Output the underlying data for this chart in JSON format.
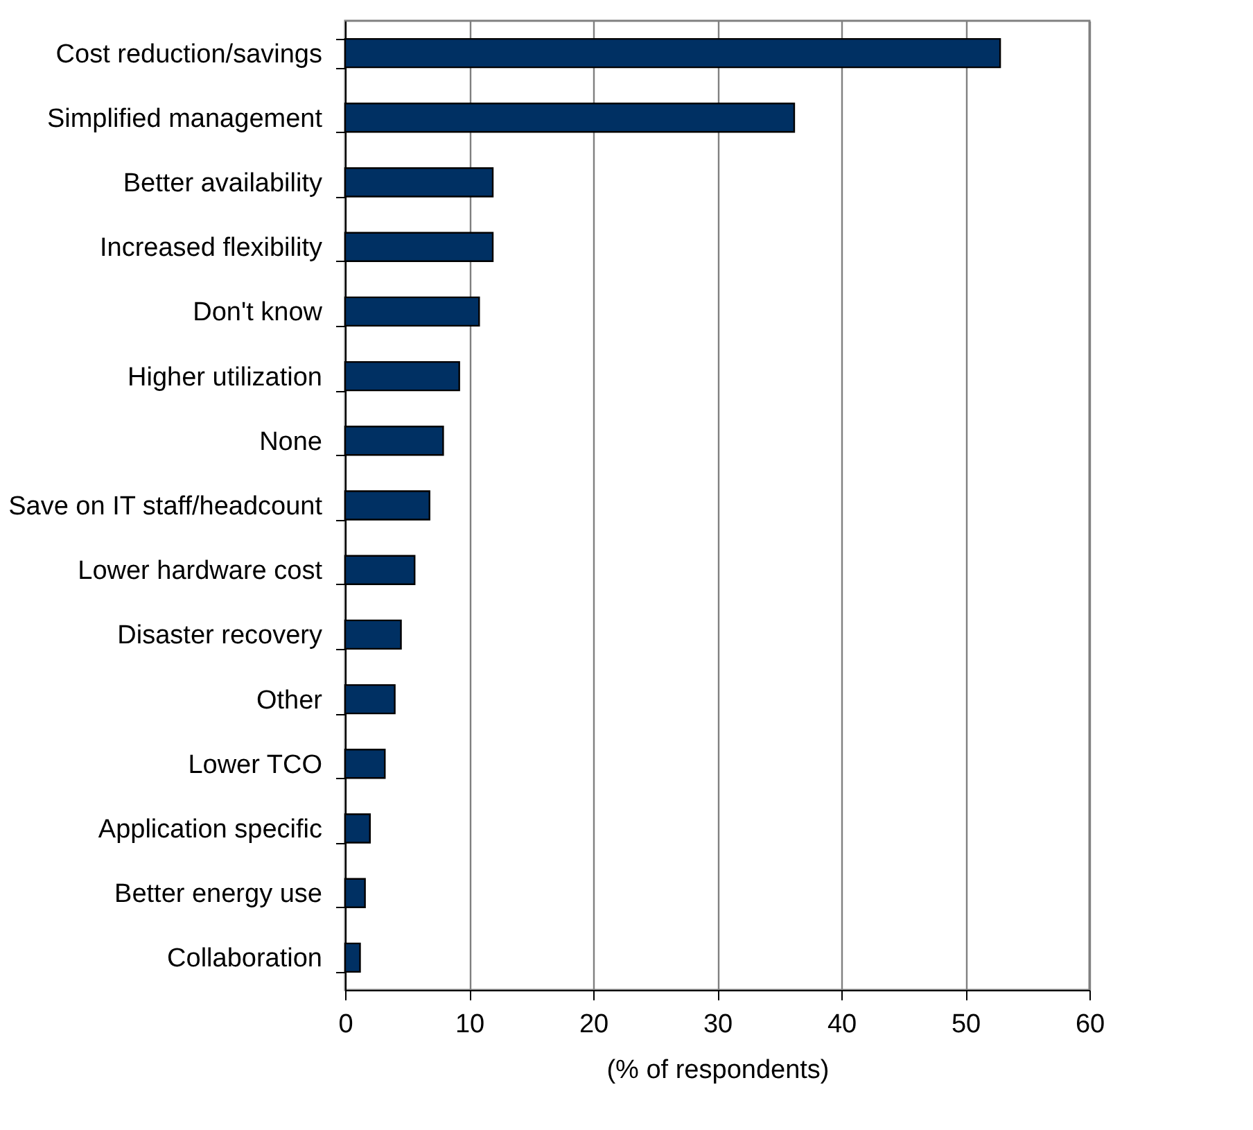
{
  "chart_data": {
    "type": "bar",
    "orientation": "horizontal",
    "xlabel": "(% of respondents)",
    "categories": [
      "Cost reduction/savings",
      "Simplified management",
      "Better availability",
      "Increased flexibility",
      "Don't know",
      "Higher utilization",
      "None",
      "Save on IT staff/headcount",
      "Lower hardware cost",
      "Disaster recovery",
      "Other",
      "Lower TCO",
      "Application specific",
      "Better energy use",
      "Collaboration"
    ],
    "values": [
      52.8,
      36.2,
      11.9,
      11.9,
      10.8,
      9.2,
      7.9,
      6.8,
      5.6,
      4.5,
      4.0,
      3.2,
      2.0,
      1.6,
      1.2
    ],
    "color": "#003063",
    "xlim": [
      0,
      60
    ],
    "xticks": [
      0,
      10,
      20,
      30,
      40,
      50,
      60
    ],
    "grid": "x"
  }
}
